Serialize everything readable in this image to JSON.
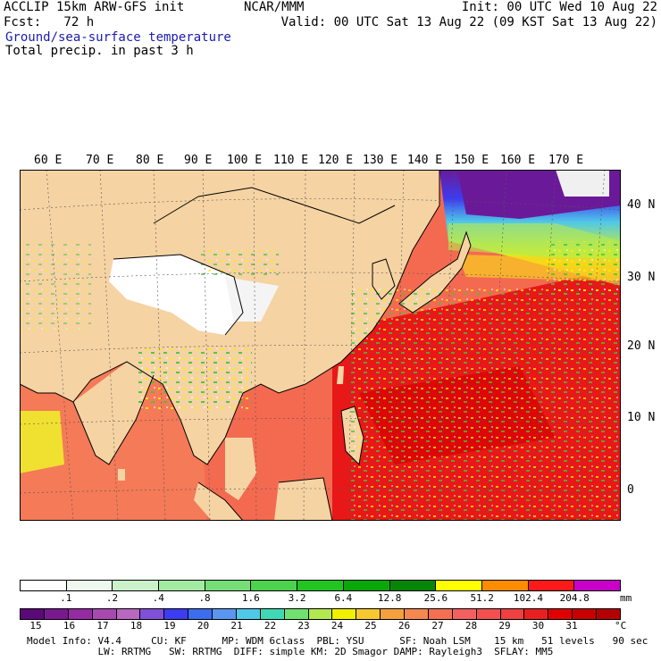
{
  "header": {
    "title_line1": "ACCLIP 15km ARW-GFS init",
    "fcst_label": "Fcst:   72 h",
    "center": "NCAR/MMM",
    "init": "Init: 00 UTC Wed 10 Aug 22",
    "valid": "Valid: 00 UTC Sat 13 Aug 22 (09 KST Sat 13 Aug 22)",
    "field1": "Ground/sea-surface temperature",
    "field2": "Total precip. in past 3 h"
  },
  "map": {
    "lon_labels": [
      "60 E",
      "70 E",
      "80 E",
      "90 E",
      "100 E",
      "110 E",
      "120 E",
      "130 E",
      "140 E",
      "150 E",
      "160 E",
      "170 E"
    ],
    "lat_labels": [
      "40 N",
      "30 N",
      "20 N",
      "10 N",
      "0"
    ]
  },
  "precip_legend": {
    "labels": [
      ".1",
      ".2",
      ".4",
      ".8",
      "1.6",
      "3.2",
      "6.4",
      "12.8",
      "25.6",
      "51.2",
      "102.4",
      "204.8"
    ],
    "unit": "mm",
    "colors": [
      "#ffffff",
      "#eef8ee",
      "#ccf2cc",
      "#a3eaa3",
      "#76de76",
      "#4cd24c",
      "#22c422",
      "#08a808",
      "#068606",
      "#ffff00",
      "#ff8c00",
      "#ff1a1a",
      "#c800c8"
    ]
  },
  "temp_legend": {
    "labels": [
      "15",
      "16",
      "17",
      "18",
      "19",
      "20",
      "21",
      "22",
      "23",
      "24",
      "25",
      "26",
      "27",
      "28",
      "29",
      "30",
      "31"
    ],
    "unit": "°C",
    "colors": [
      "#5a0a78",
      "#7a1890",
      "#952aa2",
      "#a848b0",
      "#b868c0",
      "#8050d8",
      "#3c3cf0",
      "#3c6cf0",
      "#5a96f0",
      "#50c8e8",
      "#40d8b4",
      "#70e070",
      "#b4e850",
      "#f0f000",
      "#f8c830",
      "#f4a040",
      "#f48850",
      "#f47050",
      "#f46060",
      "#f45050",
      "#f04040",
      "#e82020",
      "#e00000",
      "#c80000",
      "#b40000"
    ]
  },
  "footer": {
    "line1": "Model Info: V4.4     CU: KF      MP: WDM 6class  PBL: YSU      SF: Noah LSM    15 km   51 levels   90 sec",
    "line2": "            LW: RRTMG   SW: RRTMG  DIFF: simple KM: 2D Smagor DAMP: Rayleigh3  SFLAY: MM5"
  }
}
